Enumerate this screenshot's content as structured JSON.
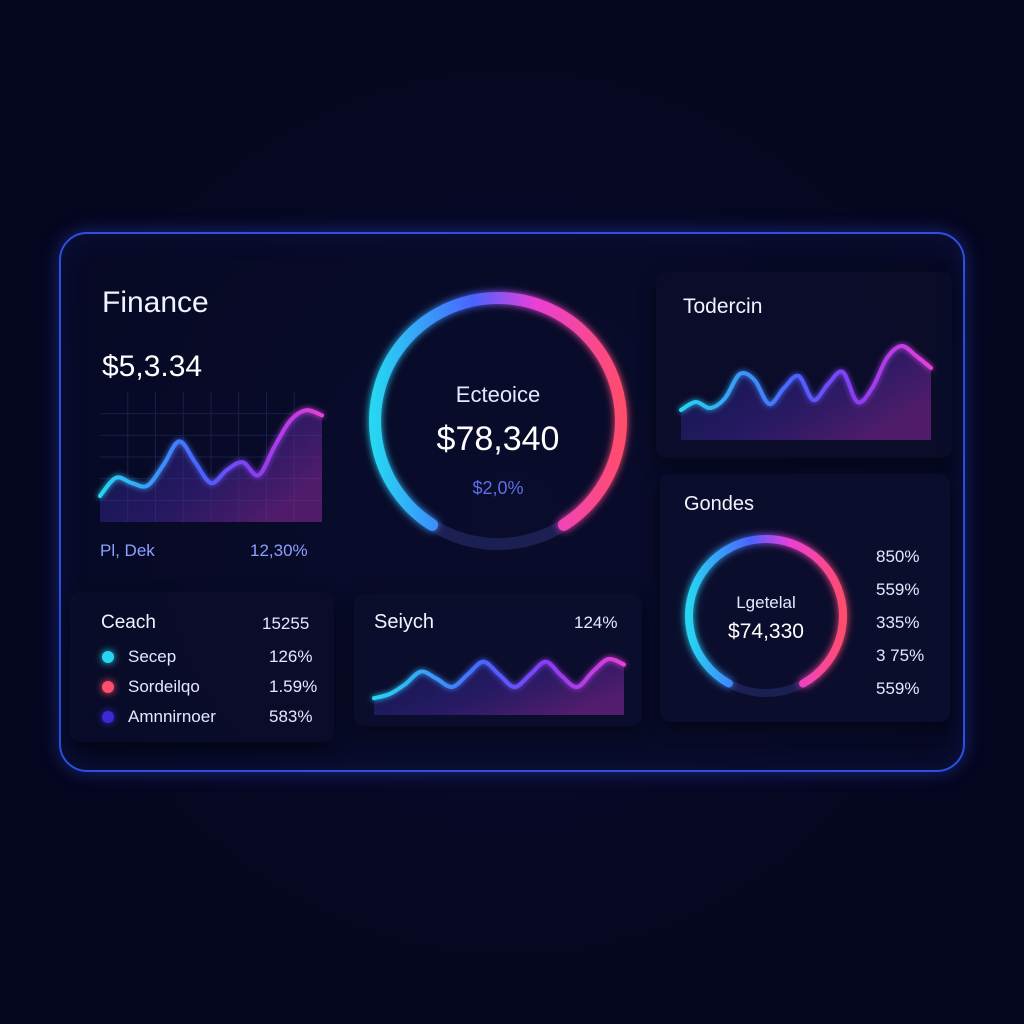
{
  "colors": {
    "background": "#05061f",
    "frame_border": "#2e4fe0",
    "cyan": "#27d6f2",
    "blue": "#4a63ff",
    "purple": "#8b3cf0",
    "magenta": "#e93fd8",
    "red": "#ff4d6d"
  },
  "finance": {
    "title": "Finance",
    "value": "$5,3.34",
    "footer_left": "Pl, Dek",
    "footer_right": "12,30%"
  },
  "center_gauge": {
    "label": "Ecteoice",
    "value": "$78,340",
    "sub": "$2,0%",
    "fill_fraction": 0.82
  },
  "top_right": {
    "title": "Todercin"
  },
  "search_list": {
    "title": "Ceach",
    "title_value": "15255",
    "items": [
      {
        "label": "Secep",
        "value": "126%",
        "color": "#27d6f2"
      },
      {
        "label": "Sordeilqo",
        "value": "1.59%",
        "color": "#ff4d6d"
      },
      {
        "label": "Amnnirnoer",
        "value": "583%",
        "color": "#3b2ad8"
      }
    ]
  },
  "seiych": {
    "title": "Seiych",
    "value": "124%"
  },
  "gondes": {
    "title": "Gondes",
    "gauge_label": "Lgetelal",
    "gauge_value": "$74,330",
    "fill_fraction": 0.84,
    "stats": [
      "850%",
      "559%",
      "335%",
      "3 75%",
      "559%"
    ]
  },
  "chart_data": [
    {
      "type": "area",
      "name": "finance-trend",
      "x": [
        0,
        1,
        2,
        3,
        4,
        5,
        6,
        7,
        8,
        9,
        10,
        11,
        12,
        13,
        14
      ],
      "values": [
        20,
        34,
        30,
        28,
        44,
        62,
        46,
        30,
        40,
        46,
        36,
        58,
        78,
        86,
        82
      ],
      "ylim": [
        0,
        100
      ]
    },
    {
      "type": "area",
      "name": "todercin-trend",
      "x": [
        0,
        1,
        2,
        3,
        4,
        5,
        6,
        7,
        8,
        9,
        10,
        11,
        12,
        13,
        14,
        15,
        16,
        17
      ],
      "values": [
        30,
        38,
        32,
        42,
        66,
        60,
        36,
        52,
        64,
        40,
        56,
        68,
        38,
        52,
        82,
        94,
        84,
        72
      ],
      "ylim": [
        0,
        100
      ]
    },
    {
      "type": "area",
      "name": "seiych-trend",
      "x": [
        0,
        1,
        2,
        3,
        4,
        5,
        6,
        7,
        8,
        9,
        10,
        11,
        12,
        13,
        14,
        15,
        16
      ],
      "values": [
        24,
        30,
        44,
        62,
        52,
        40,
        58,
        76,
        58,
        40,
        58,
        76,
        56,
        40,
        62,
        80,
        72
      ],
      "ylim": [
        0,
        100
      ]
    }
  ]
}
